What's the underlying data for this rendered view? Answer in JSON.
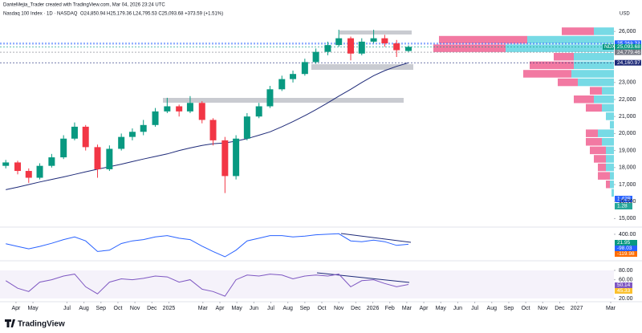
{
  "header": {
    "credit": "DanteMejia_Trader created with TradingView.com, Mar 04, 2026 23:24 UTC",
    "symbol": "Nasdaq 100 Index · 1D · NASDAQ",
    "ohlc": "O24,850.94  H25,179.36  L24,795.53  C25,093.68  +373.59 (+1.51%)",
    "currency": "USD"
  },
  "chart_data": {
    "type": "candlestick",
    "x": [
      0.4,
      1.1,
      1.75,
      2.4,
      3.1,
      3.8,
      4.45,
      5.1,
      5.8,
      6.5,
      7.2,
      7.85,
      8.5,
      9.2,
      9.9,
      10.6,
      11.25,
      11.95,
      12.6,
      13.3,
      13.95,
      14.6,
      15.3,
      15.95,
      16.65,
      17.3,
      18.0,
      18.65,
      19.35,
      20.0,
      20.7,
      21.35,
      22.05,
      22.7,
      23.4,
      24.1
    ],
    "open": [
      18100,
      18300,
      17800,
      17400,
      18100,
      18600,
      19700,
      20400,
      19200,
      17900,
      19100,
      19800,
      20100,
      20500,
      21300,
      21600,
      21300,
      21800,
      20800,
      19600,
      17500,
      19700,
      21000,
      21600,
      22600,
      23200,
      23500,
      24200,
      24800,
      25200,
      25600,
      24700,
      25400,
      25600,
      25300,
      24850.94
    ],
    "high": [
      18450,
      18400,
      17950,
      18250,
      18800,
      19900,
      20650,
      20500,
      19350,
      19300,
      20000,
      20300,
      20800,
      21500,
      22100,
      21700,
      22200,
      21900,
      20900,
      19800,
      19900,
      21200,
      21800,
      22800,
      23400,
      23700,
      24400,
      25000,
      25400,
      26100,
      25700,
      25600,
      26100,
      25800,
      25500,
      25179.36
    ],
    "low": [
      17950,
      17600,
      17100,
      17300,
      18000,
      18500,
      19600,
      19000,
      17400,
      17800,
      19000,
      19600,
      19900,
      20400,
      21200,
      21000,
      21200,
      20600,
      19300,
      16500,
      17300,
      19600,
      20900,
      21500,
      22500,
      23000,
      23400,
      24100,
      24600,
      25100,
      24300,
      24600,
      25300,
      25100,
      24500,
      24795.53
    ],
    "close": [
      18300,
      17800,
      17400,
      18100,
      18600,
      19700,
      20400,
      19200,
      17900,
      19100,
      19800,
      20100,
      20500,
      21300,
      21600,
      21300,
      21800,
      20800,
      19600,
      17500,
      19700,
      21000,
      21600,
      22600,
      23200,
      23500,
      24200,
      24800,
      25200,
      25600,
      24700,
      25400,
      25600,
      25300,
      24900,
      25093.68
    ],
    "up_color": "#089981",
    "down_color": "#f23645",
    "ma": {
      "color": "#1e2a78",
      "values": [
        16700,
        16850,
        17000,
        17150,
        17300,
        17450,
        17600,
        17750,
        17900,
        18050,
        18200,
        18350,
        18500,
        18650,
        18800,
        19000,
        19150,
        19300,
        19400,
        19450,
        19550,
        19700,
        19900,
        20100,
        20400,
        20700,
        21050,
        21400,
        21800,
        22200,
        22600,
        23000,
        23400,
        23700,
        23950,
        24160.97
      ]
    },
    "xlim": [
      0.06,
      37.37
    ],
    "ylim": [
      14500,
      27000
    ],
    "xticks": [
      {
        "value": 1,
        "label": "Apr"
      },
      {
        "value": 2,
        "label": "May"
      },
      {
        "value": 4,
        "label": "Jul"
      },
      {
        "value": 5,
        "label": "Aug"
      },
      {
        "value": 6,
        "label": "Sep"
      },
      {
        "value": 7,
        "label": "Oct"
      },
      {
        "value": 8,
        "label": "Nov"
      },
      {
        "value": 9,
        "label": "Dec"
      },
      {
        "value": 10,
        "label": "2025"
      },
      {
        "value": 12,
        "label": "Mar"
      },
      {
        "value": 13,
        "label": "Apr"
      },
      {
        "value": 14,
        "label": "May"
      },
      {
        "value": 15,
        "label": "Jun"
      },
      {
        "value": 16,
        "label": "Jul"
      },
      {
        "value": 17,
        "label": "Aug"
      },
      {
        "value": 18,
        "label": "Sep"
      },
      {
        "value": 19,
        "label": "Oct"
      },
      {
        "value": 20,
        "label": "Nov"
      },
      {
        "value": 21,
        "label": "Dec"
      },
      {
        "value": 22,
        "label": "2026"
      },
      {
        "value": 23,
        "label": "Feb"
      },
      {
        "value": 24,
        "label": "Mar"
      },
      {
        "value": 25,
        "label": "Apr"
      },
      {
        "value": 26,
        "label": "May"
      },
      {
        "value": 27,
        "label": "Jun"
      },
      {
        "value": 28,
        "label": "Jul"
      },
      {
        "value": 29,
        "label": "Aug"
      },
      {
        "value": 30,
        "label": "Sep"
      },
      {
        "value": 31,
        "label": "Oct"
      },
      {
        "value": 32,
        "label": "Nov"
      },
      {
        "value": 33,
        "label": "Dec"
      },
      {
        "value": 34,
        "label": "2027"
      },
      {
        "value": 36,
        "label": "Mar"
      }
    ],
    "yticks": [
      {
        "value": 15000,
        "label": "15,000"
      },
      {
        "value": 16000,
        "label": "16,000"
      },
      {
        "value": 17000,
        "label": "17,000"
      },
      {
        "value": 18000,
        "label": "18,000"
      },
      {
        "value": 19000,
        "label": "19,000"
      },
      {
        "value": 20000,
        "label": "20,000"
      },
      {
        "value": 21000,
        "label": "21,000"
      },
      {
        "value": 22000,
        "label": "22,000"
      },
      {
        "value": 23000,
        "label": "23,000"
      },
      {
        "value": 26000,
        "label": "26,000"
      }
    ],
    "price_tags": [
      {
        "value": 25311.39,
        "label": "25,311.39",
        "color": "#2962ff"
      },
      {
        "value": 25258.74,
        "label": "25,258.74",
        "color": "#2962ff"
      },
      {
        "value": 25093.68,
        "label": "25,093.68",
        "color": "#089981"
      },
      {
        "value": 24779.46,
        "label": "24,779.46",
        "color": "#787b86"
      },
      {
        "value": 24160.97,
        "label": "24,160.97",
        "color": "#1e2a78"
      }
    ],
    "symbol_tag": "NDX",
    "profile": {
      "levels": [
        26000,
        25500,
        25000,
        24500,
        24000,
        23500,
        23000,
        22500,
        22000,
        21500,
        21000,
        20500,
        20000,
        19500,
        19000,
        18500,
        18000,
        17500,
        17000,
        16500
      ],
      "up": [
        25,
        108,
        135,
        50,
        50,
        53,
        45,
        15,
        25,
        15,
        10,
        5,
        20,
        15,
        10,
        10,
        10,
        5,
        5,
        3
      ],
      "down": [
        40,
        110,
        90,
        25,
        55,
        60,
        25,
        15,
        25,
        20,
        0,
        0,
        15,
        20,
        20,
        15,
        10,
        15,
        5,
        0
      ],
      "up_color": "#5fd3e0",
      "down_color": "#f06292"
    },
    "volume_tags": [
      "1.42B",
      "1.28"
    ],
    "macd": {
      "color": "#2962ff",
      "ylim": [
        -450,
        550
      ],
      "yticks": [
        {
          "value": 400,
          "label": "400.00"
        }
      ],
      "values": [
        40,
        -60,
        -150,
        -60,
        60,
        200,
        300,
        150,
        -250,
        -200,
        50,
        150,
        200,
        300,
        350,
        250,
        200,
        -50,
        -250,
        -450,
        -200,
        150,
        250,
        350,
        350,
        300,
        330,
        380,
        400,
        420,
        150,
        120,
        180,
        120,
        -20,
        22
      ],
      "tags": [
        "21.95",
        "-98.03",
        "-119.98"
      ]
    },
    "rsi": {
      "color": "#7e57c2",
      "ylim": [
        15,
        85
      ],
      "yticks": [
        {
          "value": 80,
          "label": "80.00"
        },
        {
          "value": 60,
          "label": "60.00"
        },
        {
          "value": 20,
          "label": "20.00"
        }
      ],
      "values": [
        58,
        42,
        35,
        55,
        60,
        68,
        72,
        45,
        30,
        55,
        62,
        60,
        63,
        68,
        66,
        55,
        60,
        40,
        35,
        25,
        60,
        70,
        68,
        72,
        70,
        62,
        68,
        70,
        68,
        72,
        45,
        58,
        60,
        52,
        45,
        50
      ],
      "tags": [
        "50.14",
        "45.33"
      ]
    }
  },
  "footer": {
    "brand": "TradingView"
  }
}
